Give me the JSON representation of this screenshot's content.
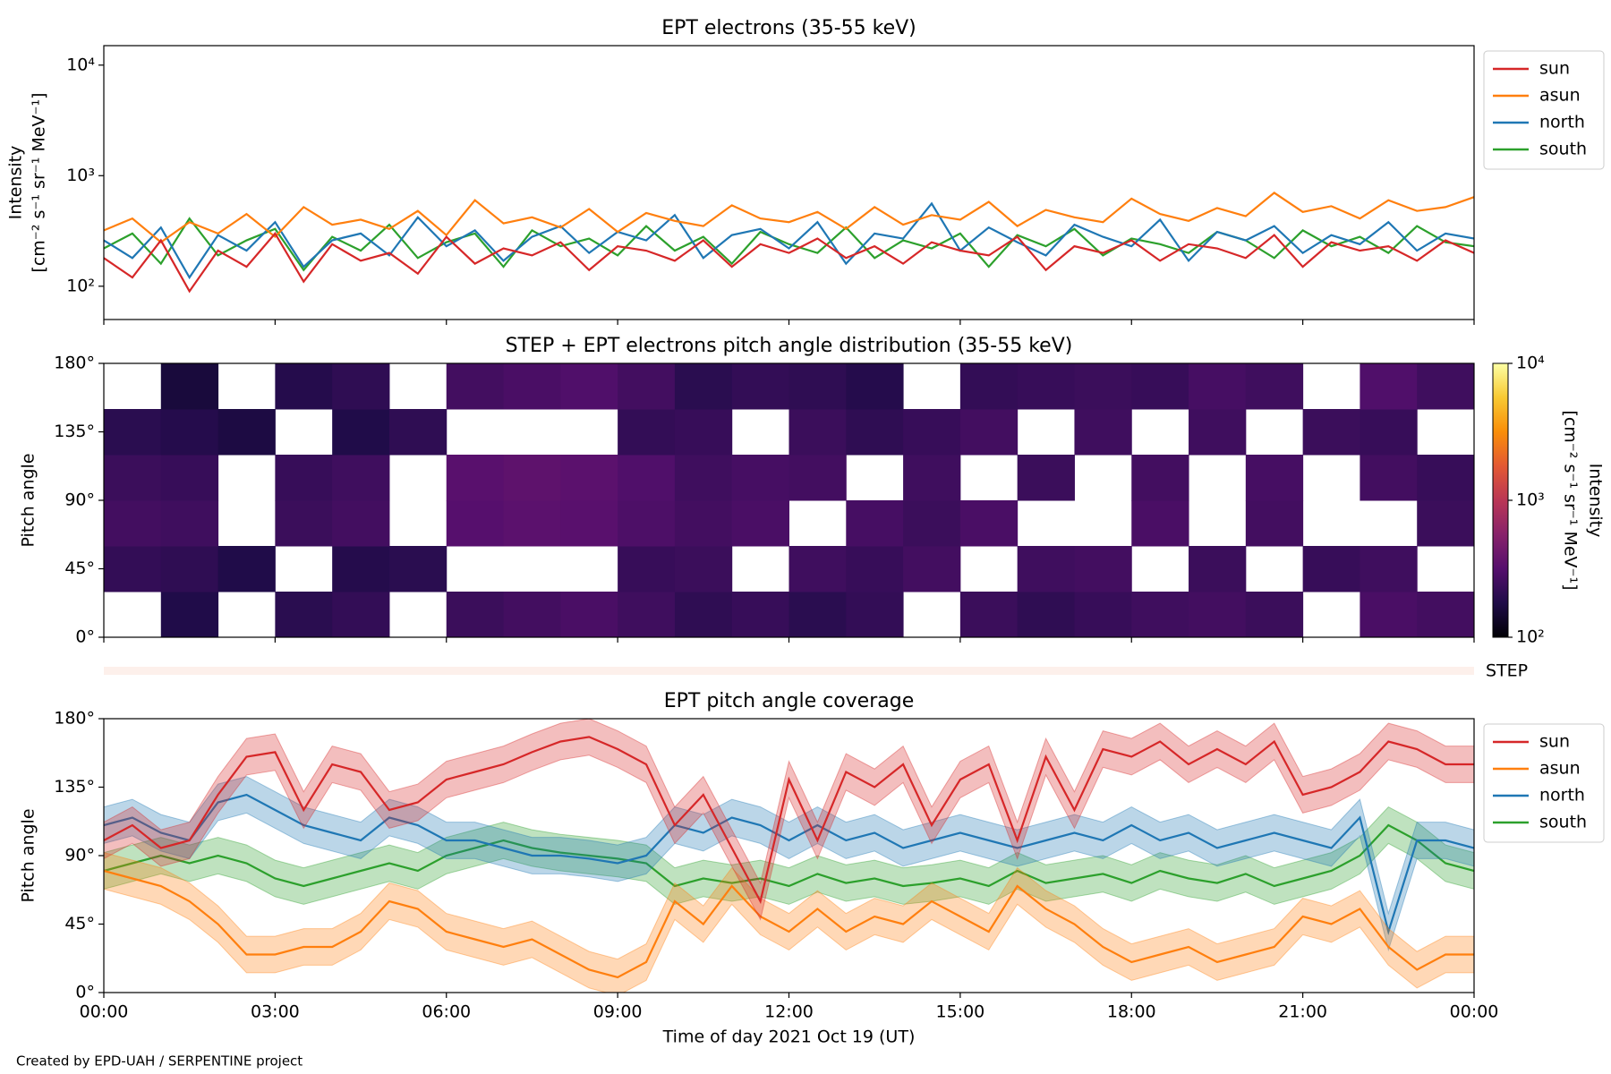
{
  "chart_data": [
    {
      "type": "line",
      "title": "EPT electrons (35-55 keV)",
      "ylabel": [
        "Intensity",
        "[cm⁻² s⁻¹ sr⁻¹ MeV⁻¹]"
      ],
      "ylog": true,
      "ylim": [
        50,
        15000
      ],
      "yticks": [
        {
          "value": 100,
          "label": "10²"
        },
        {
          "value": 1000,
          "label": "10³"
        },
        {
          "value": 10000,
          "label": "10⁴"
        }
      ],
      "xlim": [
        0,
        24
      ],
      "xticks": [
        0,
        3,
        6,
        9,
        12,
        15,
        18,
        21,
        24
      ],
      "legend": "outside",
      "x": [
        0,
        0.5,
        1,
        1.5,
        2,
        2.5,
        3,
        3.5,
        4,
        4.5,
        5,
        5.5,
        6,
        6.5,
        7,
        7.5,
        8,
        8.5,
        9,
        9.5,
        10,
        10.5,
        11,
        11.5,
        12,
        12.5,
        13,
        13.5,
        14,
        14.5,
        15,
        15.5,
        16,
        16.5,
        17,
        17.5,
        18,
        18.5,
        19,
        19.5,
        20,
        20.5,
        21,
        21.5,
        22,
        22.5,
        23,
        23.5,
        24
      ],
      "series": [
        {
          "name": "sun",
          "color": "#d62728",
          "values": [
            180,
            120,
            260,
            90,
            210,
            150,
            300,
            110,
            240,
            170,
            200,
            130,
            280,
            160,
            220,
            190,
            250,
            140,
            230,
            210,
            170,
            260,
            150,
            240,
            200,
            270,
            180,
            230,
            160,
            250,
            210,
            190,
            280,
            140,
            230,
            200,
            260,
            170,
            240,
            220,
            180,
            290,
            150,
            250,
            210,
            230,
            170,
            260,
            200
          ]
        },
        {
          "name": "asun",
          "color": "#ff7f0e",
          "values": [
            320,
            410,
            250,
            380,
            300,
            450,
            280,
            520,
            360,
            400,
            330,
            480,
            290,
            600,
            370,
            420,
            340,
            500,
            310,
            460,
            390,
            350,
            540,
            410,
            380,
            470,
            330,
            520,
            360,
            440,
            400,
            580,
            350,
            490,
            420,
            380,
            620,
            450,
            390,
            510,
            430,
            700,
            470,
            530,
            410,
            600,
            480,
            520,
            640
          ]
        },
        {
          "name": "north",
          "color": "#1f77b4",
          "values": [
            260,
            180,
            340,
            120,
            290,
            210,
            380,
            150,
            260,
            300,
            190,
            420,
            230,
            320,
            170,
            280,
            350,
            200,
            310,
            260,
            440,
            180,
            290,
            330,
            220,
            380,
            160,
            300,
            270,
            560,
            210,
            340,
            250,
            190,
            360,
            280,
            230,
            400,
            170,
            310,
            260,
            350,
            200,
            290,
            240,
            380,
            210,
            300,
            270
          ]
        },
        {
          "name": "south",
          "color": "#2ca02c",
          "values": [
            220,
            300,
            160,
            410,
            190,
            260,
            330,
            140,
            280,
            210,
            360,
            180,
            250,
            300,
            150,
            320,
            230,
            270,
            190,
            350,
            210,
            280,
            160,
            310,
            240,
            200,
            340,
            180,
            260,
            220,
            300,
            150,
            290,
            230,
            330,
            190,
            270,
            240,
            200,
            310,
            260,
            180,
            320,
            230,
            280,
            200,
            350,
            250,
            230
          ]
        }
      ]
    },
    {
      "type": "heatmap",
      "title": "STEP + EPT electrons pitch angle distribution (35-55 keV)",
      "ylabel": "Pitch angle",
      "ylim": [
        0,
        180
      ],
      "yticks": [
        {
          "value": 0,
          "label": "0°"
        },
        {
          "value": 45,
          "label": "45°"
        },
        {
          "value": 90,
          "label": "90°"
        },
        {
          "value": 135,
          "label": "135°"
        },
        {
          "value": 180,
          "label": "180°"
        }
      ],
      "xlim": [
        0,
        24
      ],
      "xticks": [
        0,
        3,
        6,
        9,
        12,
        15,
        18,
        21,
        24
      ],
      "xbins": [
        0,
        1,
        2,
        3,
        4,
        5,
        6,
        7,
        8,
        9,
        10,
        11,
        12,
        13,
        14,
        15,
        16,
        17,
        18,
        19,
        20,
        21,
        22,
        23,
        24
      ],
      "ybins": [
        0,
        30,
        60,
        90,
        120,
        150,
        180
      ],
      "values": [
        [
          null,
          220,
          260,
          240,
          200,
          null
        ],
        [
          180,
          210,
          250,
          230,
          190,
          160
        ],
        [
          null,
          180,
          null,
          null,
          170,
          null
        ],
        [
          200,
          null,
          240,
          230,
          null,
          190
        ],
        [
          220,
          190,
          260,
          250,
          180,
          210
        ],
        [
          null,
          200,
          null,
          null,
          210,
          null
        ],
        [
          240,
          null,
          320,
          330,
          null,
          260
        ],
        [
          260,
          null,
          340,
          350,
          null,
          280
        ],
        [
          280,
          null,
          330,
          340,
          null,
          300
        ],
        [
          250,
          230,
          290,
          300,
          220,
          260
        ],
        [
          210,
          240,
          260,
          250,
          230,
          200
        ],
        [
          230,
          null,
          280,
          270,
          null,
          220
        ],
        [
          200,
          250,
          null,
          260,
          240,
          210
        ],
        [
          220,
          230,
          270,
          null,
          210,
          190
        ],
        [
          null,
          260,
          240,
          250,
          230,
          null
        ],
        [
          240,
          null,
          280,
          null,
          260,
          220
        ],
        [
          210,
          250,
          null,
          240,
          null,
          230
        ],
        [
          230,
          260,
          null,
          null,
          250,
          240
        ],
        [
          250,
          null,
          280,
          260,
          null,
          230
        ],
        [
          260,
          240,
          null,
          null,
          250,
          270
        ],
        [
          240,
          null,
          260,
          270,
          null,
          250
        ],
        [
          null,
          230,
          null,
          null,
          240,
          null
        ],
        [
          280,
          250,
          null,
          260,
          230,
          300
        ],
        [
          260,
          null,
          240,
          230,
          null,
          250
        ]
      ],
      "colormap": "inferno",
      "zlog": true,
      "zlim": [
        100,
        10000
      ],
      "zticks": [
        {
          "value": 100,
          "label": "10²"
        },
        {
          "value": 1000,
          "label": "10³"
        },
        {
          "value": 10000,
          "label": "10⁴"
        }
      ],
      "zlabel": [
        "Intensity",
        "[cm⁻² s⁻¹ sr⁻¹ MeV⁻¹]"
      ],
      "strip_label": "STEP"
    },
    {
      "type": "line",
      "title": "EPT pitch angle coverage",
      "ylabel": "Pitch angle",
      "ylim": [
        0,
        180
      ],
      "yticks": [
        {
          "value": 0,
          "label": "0°"
        },
        {
          "value": 45,
          "label": "45°"
        },
        {
          "value": 90,
          "label": "90°"
        },
        {
          "value": 135,
          "label": "135°"
        },
        {
          "value": 180,
          "label": "180°"
        }
      ],
      "xlim": [
        0,
        24
      ],
      "xticks": [
        {
          "value": 0,
          "label": "00:00"
        },
        {
          "value": 3,
          "label": "03:00"
        },
        {
          "value": 6,
          "label": "06:00"
        },
        {
          "value": 9,
          "label": "09:00"
        },
        {
          "value": 12,
          "label": "12:00"
        },
        {
          "value": 15,
          "label": "15:00"
        },
        {
          "value": 18,
          "label": "18:00"
        },
        {
          "value": 21,
          "label": "21:00"
        },
        {
          "value": 24,
          "label": "00:00"
        }
      ],
      "xlabel": "Time of day 2021 Oct 19 (UT)",
      "legend": "outside",
      "x": [
        0,
        0.5,
        1,
        1.5,
        2,
        2.5,
        3,
        3.5,
        4,
        4.5,
        5,
        5.5,
        6,
        6.5,
        7,
        7.5,
        8,
        8.5,
        9,
        9.5,
        10,
        10.5,
        11,
        11.5,
        12,
        12.5,
        13,
        13.5,
        14,
        14.5,
        15,
        15.5,
        16,
        16.5,
        17,
        17.5,
        18,
        18.5,
        19,
        19.5,
        20,
        20.5,
        21,
        21.5,
        22,
        22.5,
        23,
        23.5,
        24
      ],
      "series": [
        {
          "name": "sun",
          "color": "#d62728",
          "band": 12,
          "values": [
            100,
            110,
            95,
            100,
            130,
            155,
            158,
            120,
            150,
            145,
            120,
            125,
            140,
            145,
            150,
            158,
            165,
            168,
            160,
            150,
            110,
            130,
            95,
            60,
            140,
            100,
            145,
            135,
            150,
            110,
            140,
            150,
            100,
            155,
            120,
            160,
            155,
            165,
            150,
            160,
            150,
            165,
            130,
            135,
            145,
            165,
            160,
            150,
            150
          ]
        },
        {
          "name": "asun",
          "color": "#ff7f0e",
          "band": 12,
          "values": [
            80,
            75,
            70,
            60,
            45,
            25,
            25,
            30,
            30,
            40,
            60,
            55,
            40,
            35,
            30,
            35,
            25,
            15,
            10,
            20,
            60,
            45,
            70,
            50,
            40,
            55,
            40,
            50,
            45,
            60,
            50,
            40,
            70,
            55,
            45,
            30,
            20,
            25,
            30,
            20,
            25,
            30,
            50,
            45,
            55,
            30,
            15,
            25,
            25
          ]
        },
        {
          "name": "north",
          "color": "#1f77b4",
          "band": 12,
          "values": [
            110,
            115,
            105,
            100,
            125,
            130,
            120,
            110,
            105,
            100,
            115,
            110,
            100,
            100,
            95,
            90,
            90,
            88,
            85,
            90,
            110,
            105,
            115,
            110,
            100,
            110,
            100,
            105,
            95,
            100,
            105,
            100,
            95,
            100,
            105,
            100,
            110,
            100,
            105,
            95,
            100,
            105,
            100,
            95,
            115,
            40,
            100,
            100,
            95
          ]
        },
        {
          "name": "south",
          "color": "#2ca02c",
          "band": 12,
          "values": [
            80,
            85,
            90,
            85,
            90,
            85,
            75,
            70,
            75,
            80,
            85,
            80,
            90,
            95,
            100,
            95,
            92,
            90,
            88,
            85,
            70,
            75,
            72,
            75,
            70,
            78,
            72,
            75,
            70,
            72,
            75,
            70,
            80,
            72,
            75,
            78,
            72,
            80,
            75,
            72,
            78,
            70,
            75,
            80,
            90,
            110,
            100,
            85,
            80
          ]
        }
      ]
    }
  ],
  "footer": "Created by EPD-UAH / SERPENTINE project"
}
